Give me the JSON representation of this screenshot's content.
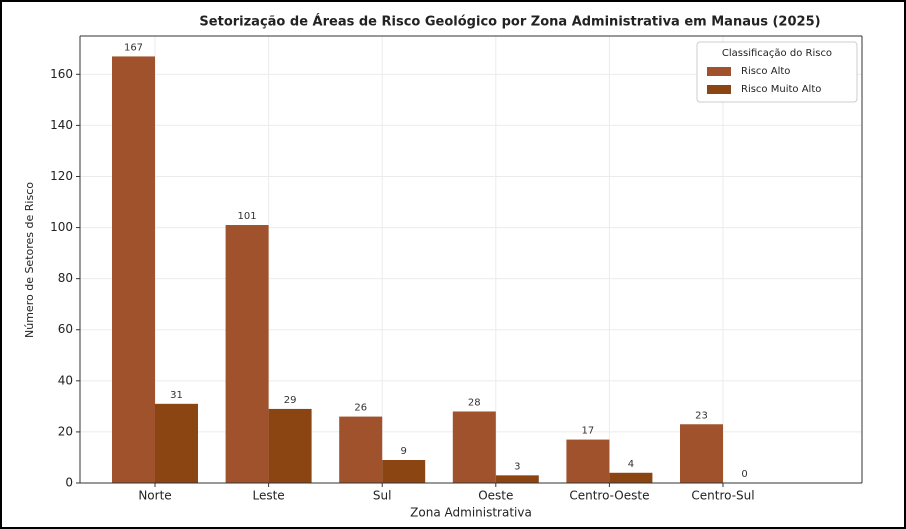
{
  "chart_data": {
    "type": "bar",
    "title": "Setorização de Áreas de Risco Geológico por Zona Administrativa em Manaus (2025)",
    "x_label": "Zona Administrativa",
    "y_label": "Número de Setores de Risco",
    "categories": [
      "Norte",
      "Leste",
      "Sul",
      "Oeste",
      "Centro-Oeste",
      "Centro-Sul"
    ],
    "series": [
      {
        "name": "Risco Alto",
        "color": "#a0522d",
        "values": [
          167,
          101,
          26,
          28,
          17,
          23
        ]
      },
      {
        "name": "Risco Muito Alto",
        "color": "#8b4513",
        "values": [
          31,
          29,
          9,
          3,
          4,
          0
        ]
      }
    ],
    "legend_title": "Classificação do Risco",
    "legend_position": "upper right",
    "ylim": [
      0,
      175
    ],
    "yticks": [
      0,
      20,
      40,
      60,
      80,
      100,
      120,
      140,
      160
    ],
    "grid": true
  }
}
